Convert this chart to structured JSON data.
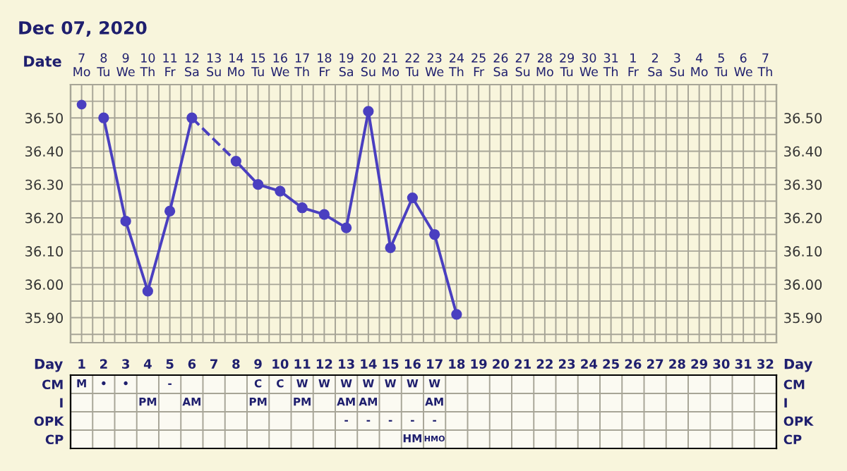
{
  "chart_data": [
    {
      "type": "line",
      "title": "Dec 07, 2020",
      "xlabel": "Date",
      "categories": [
        "7\nMo",
        "8\nTu",
        "9\nWe",
        "10\nTh",
        "11\nFr",
        "12\nSa",
        "13\nSu",
        "14\nMo",
        "15\nTu",
        "16\nWe",
        "17\nTh",
        "18\nFr",
        "19\nSa",
        "20\nSu",
        "21\nMo",
        "22\nTu",
        "23\nWe",
        "24\nTh",
        "25\nFr",
        "26\nSa",
        "27\nSu",
        "28\nMo",
        "29\nTu",
        "30\nWe",
        "31\nTh",
        "1\nFr",
        "2\nSa",
        "3\nSu",
        "4\nMo",
        "5\nTu",
        "6\nWe",
        "7\nTh"
      ],
      "ylim": [
        35.825,
        36.6
      ],
      "yticks": [
        {
          "value": 35.85,
          "label": null
        },
        {
          "value": 35.9,
          "label": "35.90"
        },
        {
          "value": 35.95,
          "label": null
        },
        {
          "value": 36.0,
          "label": "36.00"
        },
        {
          "value": 36.05,
          "label": null
        },
        {
          "value": 36.1,
          "label": "36.10"
        },
        {
          "value": 36.15,
          "label": null
        },
        {
          "value": 36.2,
          "label": "36.20"
        },
        {
          "value": 36.25,
          "label": null
        },
        {
          "value": 36.3,
          "label": "36.30"
        },
        {
          "value": 36.35,
          "label": null
        },
        {
          "value": 36.4,
          "label": "36.40"
        },
        {
          "value": 36.45,
          "label": null
        },
        {
          "value": 36.5,
          "label": "36.50"
        },
        {
          "value": 36.55,
          "label": null
        }
      ],
      "y2lim": [
        35.825,
        36.6
      ],
      "y2ticks": [
        {
          "value": 35.85,
          "label": null
        },
        {
          "value": 35.9,
          "label": "35.90"
        },
        {
          "value": 35.95,
          "label": null
        },
        {
          "value": 36.0,
          "label": "36.00"
        },
        {
          "value": 36.05,
          "label": null
        },
        {
          "value": 36.1,
          "label": "36.10"
        },
        {
          "value": 36.15,
          "label": null
        },
        {
          "value": 36.2,
          "label": "36.20"
        },
        {
          "value": 36.25,
          "label": null
        },
        {
          "value": 36.3,
          "label": "36.30"
        },
        {
          "value": 36.35,
          "label": null
        },
        {
          "value": 36.4,
          "label": "36.40"
        },
        {
          "value": 36.45,
          "label": null
        },
        {
          "value": 36.5,
          "label": "36.50"
        },
        {
          "value": 36.55,
          "label": null
        }
      ],
      "grid": true,
      "legend": false,
      "series": [
        {
          "type": "scatter",
          "color": "#4a3fc0",
          "marker": "circle",
          "values": [
            36.54,
            null,
            null,
            null,
            null,
            null,
            null,
            null,
            null,
            null,
            null,
            null,
            null,
            null,
            null,
            null,
            null,
            null,
            null,
            null,
            null,
            null,
            null,
            null,
            null,
            null,
            null,
            null,
            null,
            null,
            null,
            null
          ]
        },
        {
          "type": "line",
          "color": "#4a3fc0",
          "marker": "circle",
          "line_style": "solid",
          "values": [
            null,
            36.5,
            36.19,
            35.98,
            36.22,
            36.5,
            null,
            null,
            null,
            null,
            null,
            null,
            null,
            null,
            null,
            null,
            null,
            null,
            null,
            null,
            null,
            null,
            null,
            null,
            null,
            null,
            null,
            null,
            null,
            null,
            null,
            null
          ]
        },
        {
          "type": "line",
          "color": "#4a3fc0",
          "line_style": "dashed",
          "values": [
            null,
            null,
            null,
            null,
            null,
            36.5,
            null,
            36.37,
            null,
            null,
            null,
            null,
            null,
            null,
            null,
            null,
            null,
            null,
            null,
            null,
            null,
            null,
            null,
            null,
            null,
            null,
            null,
            null,
            null,
            null,
            null,
            null
          ]
        },
        {
          "type": "line",
          "color": "#4a3fc0",
          "marker": "circle",
          "line_style": "solid",
          "values": [
            null,
            null,
            null,
            null,
            null,
            null,
            null,
            36.37,
            36.3,
            36.28,
            36.23,
            36.21,
            36.17,
            36.52,
            36.11,
            36.26,
            36.15,
            35.91,
            null,
            null,
            null,
            null,
            null,
            null,
            null,
            null,
            null,
            null,
            null,
            null,
            null,
            null
          ]
        }
      ]
    },
    {
      "type": "heatmap",
      "xlabel": "Day",
      "categories": [
        "1",
        "2",
        "3",
        "4",
        "5",
        "6",
        "7",
        "8",
        "9",
        "10",
        "11",
        "12",
        "13",
        "14",
        "15",
        "16",
        "17",
        "18",
        "19",
        "20",
        "21",
        "22",
        "23",
        "24",
        "25",
        "26",
        "27",
        "28",
        "29",
        "30",
        "31",
        "32"
      ],
      "y_categories": [
        "CM",
        "I",
        "OPK",
        "CP"
      ],
      "y2_categories": [
        "CM",
        "I",
        "OPK",
        "CP"
      ],
      "cells": [
        [
          null,
          null,
          null,
          null,
          null,
          null,
          null,
          null,
          null,
          null,
          null,
          null,
          null,
          null,
          null,
          null,
          null,
          null,
          null,
          null,
          null,
          null,
          null,
          null,
          null,
          null,
          null,
          null,
          null,
          null,
          null,
          null
        ],
        [
          null,
          null,
          null,
          null,
          null,
          null,
          null,
          null,
          null,
          null,
          null,
          null,
          null,
          null,
          null,
          null,
          null,
          null,
          null,
          null,
          null,
          null,
          null,
          null,
          null,
          null,
          null,
          null,
          null,
          null,
          null,
          null
        ],
        [
          null,
          null,
          null,
          null,
          null,
          null,
          null,
          null,
          null,
          null,
          null,
          null,
          null,
          null,
          null,
          null,
          null,
          null,
          null,
          null,
          null,
          null,
          null,
          null,
          null,
          null,
          null,
          null,
          null,
          null,
          null,
          null
        ],
        [
          null,
          null,
          null,
          null,
          null,
          null,
          null,
          null,
          null,
          null,
          null,
          null,
          null,
          null,
          null,
          null,
          null,
          null,
          null,
          null,
          null,
          null,
          null,
          null,
          null,
          null,
          null,
          null,
          null,
          null,
          null,
          null
        ]
      ],
      "cell_labels": [
        [
          "M",
          "•",
          "•",
          null,
          "-",
          null,
          null,
          null,
          "C",
          "C",
          "W",
          "W",
          "W",
          "W",
          "W",
          "W",
          "W",
          null,
          null,
          null,
          null,
          null,
          null,
          null,
          null,
          null,
          null,
          null,
          null,
          null,
          null,
          null
        ],
        [
          null,
          null,
          null,
          "PM",
          null,
          "AM",
          null,
          null,
          "PM",
          null,
          "PM",
          null,
          "AM",
          "AM",
          null,
          null,
          "AM",
          null,
          null,
          null,
          null,
          null,
          null,
          null,
          null,
          null,
          null,
          null,
          null,
          null,
          null,
          null
        ],
        [
          null,
          null,
          null,
          null,
          null,
          null,
          null,
          null,
          null,
          null,
          null,
          null,
          "-",
          "-",
          "-",
          "-",
          "-",
          null,
          null,
          null,
          null,
          null,
          null,
          null,
          null,
          null,
          null,
          null,
          null,
          null,
          null,
          null
        ],
        [
          null,
          null,
          null,
          null,
          null,
          null,
          null,
          null,
          null,
          null,
          null,
          null,
          null,
          null,
          null,
          "HM",
          "HMO",
          null,
          null,
          null,
          null,
          null,
          null,
          null,
          null,
          null,
          null,
          null,
          null,
          null,
          null,
          null
        ]
      ]
    }
  ]
}
